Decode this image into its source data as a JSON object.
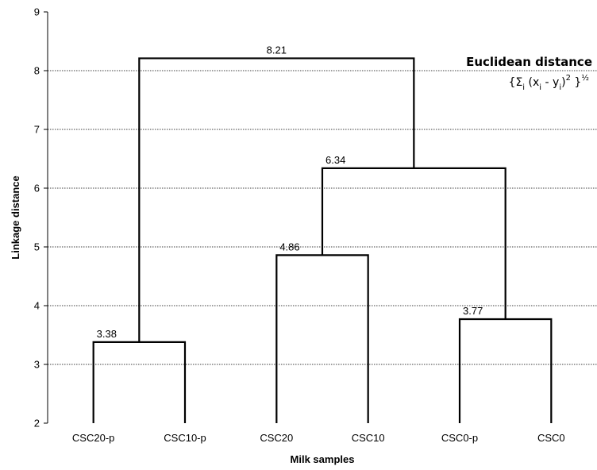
{
  "chart_data": {
    "type": "dendrogram",
    "xlabel": "Milk samples",
    "ylabel": "Linkage distance",
    "ylim": [
      2,
      9
    ],
    "yticks": [
      2,
      3,
      4,
      5,
      6,
      7,
      8,
      9
    ],
    "grid": true,
    "leaves": [
      "CSC20-p",
      "CSC10-p",
      "CSC20",
      "CSC10",
      "CSC0-p",
      "CSC0"
    ],
    "merges": [
      {
        "id": "m1",
        "children": [
          "CSC20-p",
          "CSC10-p"
        ],
        "height": 3.38,
        "label": "3.38"
      },
      {
        "id": "m2",
        "children": [
          "CSC20",
          "CSC10"
        ],
        "height": 4.86,
        "label": "4.86"
      },
      {
        "id": "m3",
        "children": [
          "CSC0-p",
          "CSC0"
        ],
        "height": 3.77,
        "label": "3.77"
      },
      {
        "id": "m4",
        "children": [
          "m2",
          "m3"
        ],
        "height": 6.34,
        "label": "6.34"
      },
      {
        "id": "m5",
        "children": [
          "m1",
          "m4"
        ],
        "height": 8.21,
        "label": "8.21"
      }
    ],
    "annotation": {
      "title": "Euclidean distance",
      "formula": "{Σi (xi - yi)2 }½"
    }
  }
}
